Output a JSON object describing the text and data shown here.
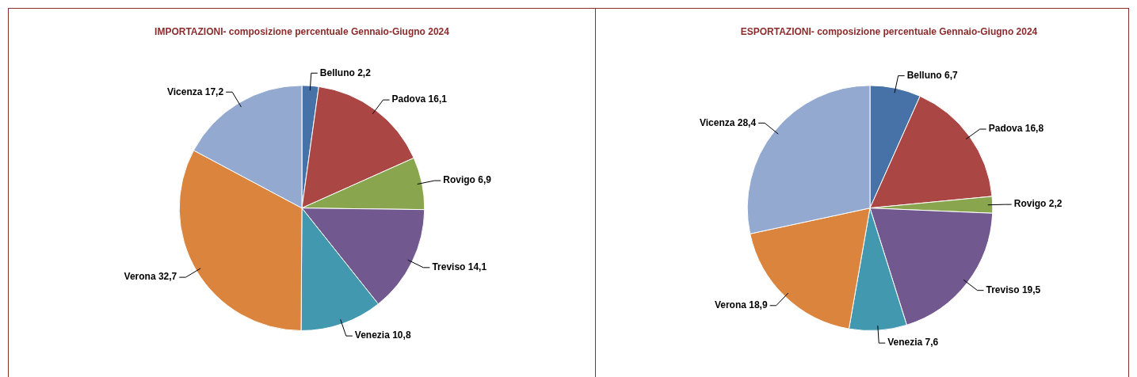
{
  "chart_data": [
    {
      "type": "pie",
      "title": "IMPORTAZIONI- composizione percentuale Gennaio-Giugno 2024",
      "categories": [
        "Belluno",
        "Padova",
        "Rovigo",
        "Treviso",
        "Venezia",
        "Verona",
        "Vicenza"
      ],
      "values": [
        2.2,
        16.1,
        6.9,
        14.1,
        10.8,
        32.7,
        17.2
      ],
      "value_labels": [
        "2,2",
        "16,1",
        "6,9",
        "14,1",
        "10,8",
        "32,7",
        "17,2"
      ],
      "colors": [
        "#4672a8",
        "#aa4643",
        "#89a54e",
        "#71588f",
        "#4198af",
        "#db843d",
        "#93a9cf"
      ]
    },
    {
      "type": "pie",
      "title": "ESPORTAZIONI- composizione percentuale Gennaio-Giugno 2024",
      "categories": [
        "Belluno",
        "Padova",
        "Rovigo",
        "Treviso",
        "Venezia",
        "Verona",
        "Vicenza"
      ],
      "values": [
        6.7,
        16.8,
        2.2,
        19.5,
        7.6,
        18.9,
        28.4
      ],
      "value_labels": [
        "6,7",
        "16,8",
        "2,2",
        "19,5",
        "7,6",
        "18,9",
        "28,4"
      ],
      "colors": [
        "#4672a8",
        "#aa4643",
        "#89a54e",
        "#71588f",
        "#4198af",
        "#db843d",
        "#93a9cf"
      ]
    }
  ]
}
